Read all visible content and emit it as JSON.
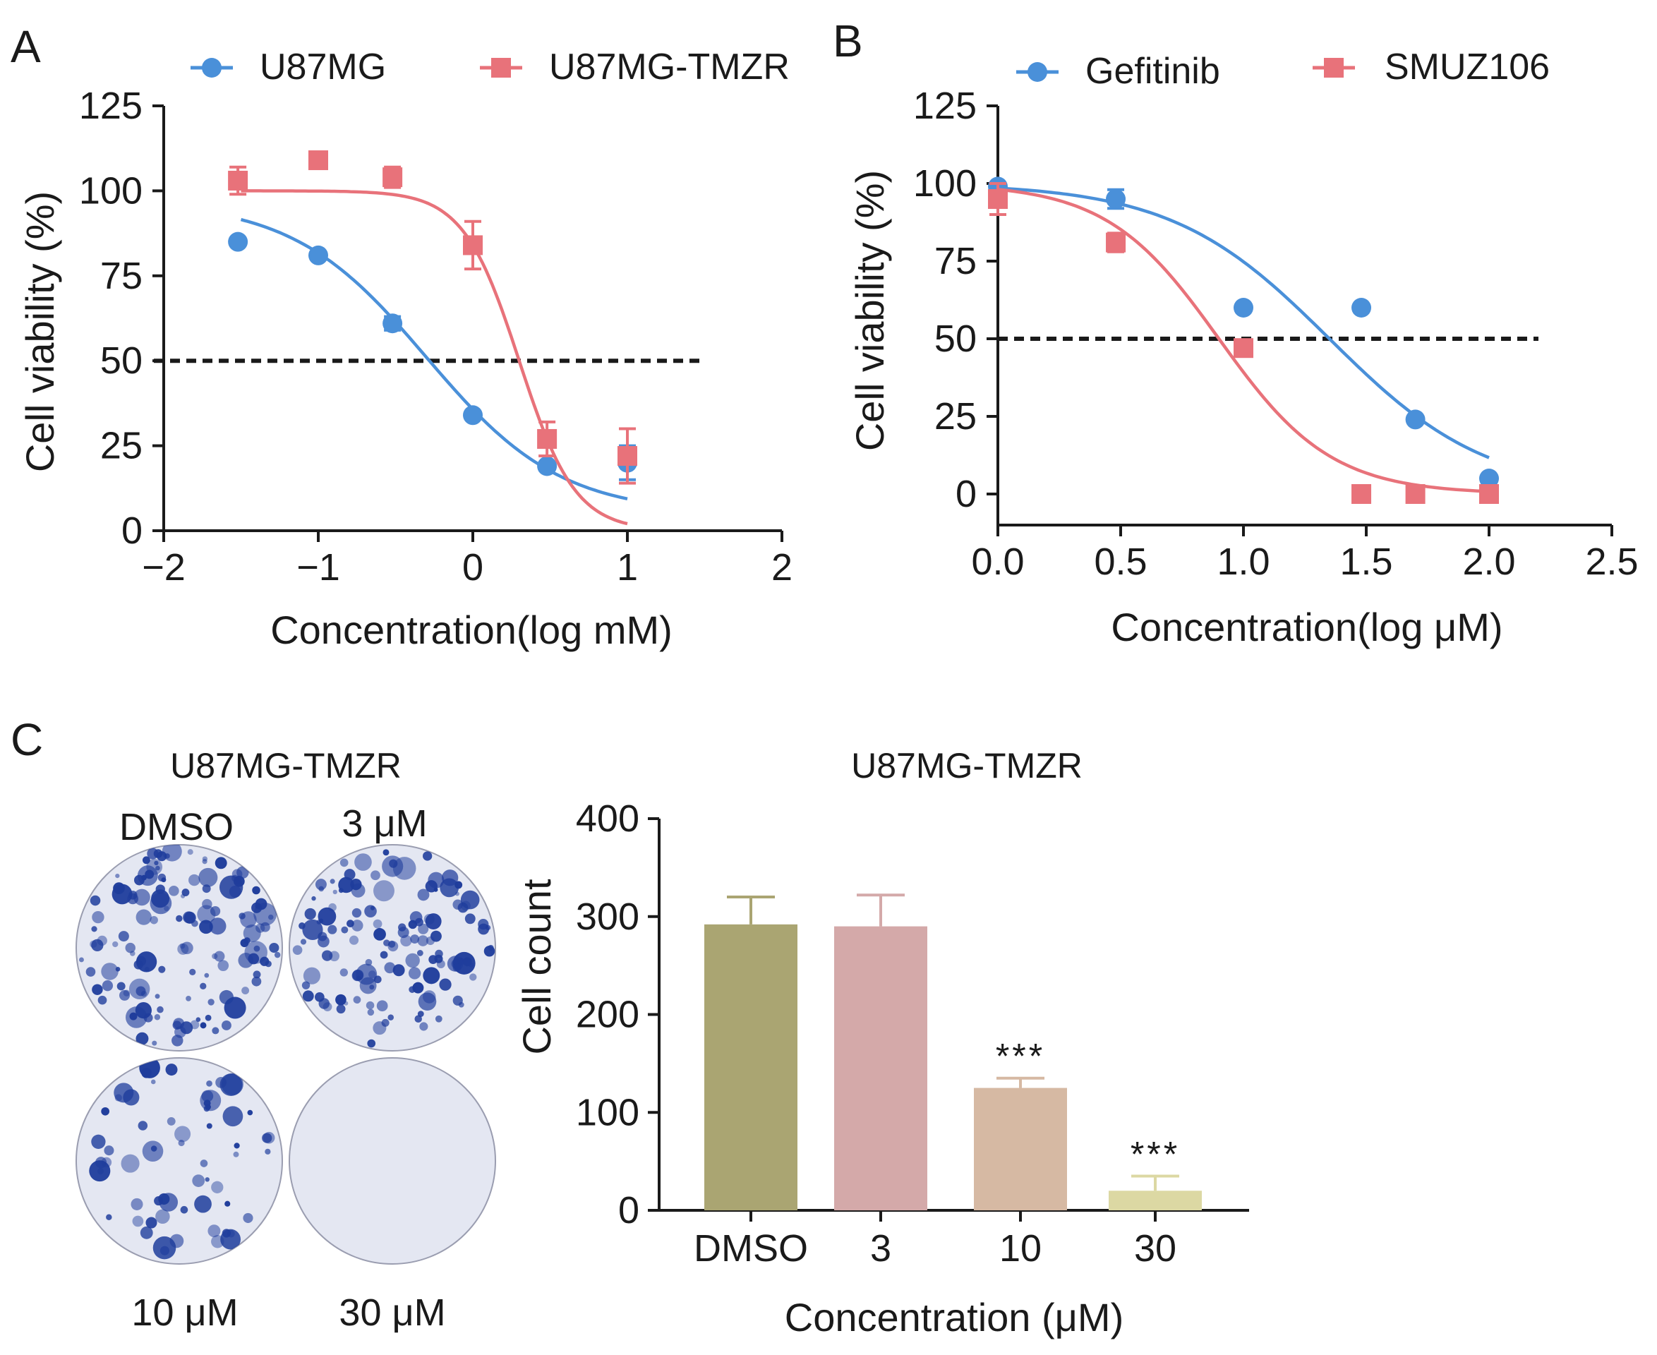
{
  "chart_data": [
    {
      "panel": "A",
      "type": "scatter",
      "title": "",
      "xlabel": "Concentration(log mM)",
      "ylabel": "Cell viability (%)",
      "xlim": [
        -2,
        2
      ],
      "ylim": [
        0,
        125
      ],
      "xticks": [
        "−2",
        "−1",
        "0",
        "1",
        "2"
      ],
      "xtick_values": [
        -2,
        -1,
        0,
        1,
        2
      ],
      "yticks": [
        "0",
        "25",
        "50",
        "75",
        "100",
        "125"
      ],
      "ytick_values": [
        0,
        25,
        50,
        75,
        100,
        125
      ],
      "reference_line_y": 50,
      "fit": "sigmoid (four-parameter logistic)",
      "fit_range": [
        -1.5,
        1.0
      ],
      "legend": "top",
      "series": [
        {
          "name": "U87MG",
          "color": "#4a90d9",
          "marker": "circle",
          "x": [
            -1.52,
            -1.0,
            -0.52,
            0.0,
            0.48,
            1.0
          ],
          "y": [
            85,
            81,
            61,
            34,
            19,
            20
          ],
          "error": [
            0,
            0,
            2,
            0,
            0,
            5
          ],
          "fit_params": {
            "bottom": 5,
            "top": 97,
            "ec50_log": -0.3,
            "hill": 1.0
          }
        },
        {
          "name": "U87MG-TMZR",
          "color": "#e8727a",
          "marker": "square",
          "x": [
            -1.52,
            -1.0,
            -0.52,
            0.0,
            0.48,
            1.0
          ],
          "y": [
            103,
            109,
            104,
            84,
            27,
            22
          ],
          "error": [
            4,
            0,
            3,
            7,
            5,
            8
          ],
          "fit_params": {
            "bottom": 0,
            "top": 100,
            "ec50_log": 0.3,
            "hill": 2.4
          }
        }
      ]
    },
    {
      "panel": "B",
      "type": "scatter",
      "title": "",
      "xlabel": "Concentration(log μM)",
      "ylabel": "Cell viability (%)",
      "xlim": [
        0,
        2.5
      ],
      "ylim": [
        -10,
        125
      ],
      "xticks": [
        "0.0",
        "0.5",
        "1.0",
        "1.5",
        "2.0",
        "2.5"
      ],
      "xtick_values": [
        0,
        0.5,
        1.0,
        1.5,
        2.0,
        2.5
      ],
      "yticks": [
        "0",
        "25",
        "50",
        "75",
        "100",
        "125"
      ],
      "ytick_values": [
        0,
        25,
        50,
        75,
        100,
        125
      ],
      "reference_line_y": 50,
      "fit": "sigmoid (four-parameter logistic)",
      "fit_range": [
        0,
        2.0
      ],
      "legend": "top",
      "series": [
        {
          "name": "Gefitinib",
          "color": "#4a90d9",
          "marker": "circle",
          "x": [
            0.0,
            0.48,
            1.0,
            1.48,
            1.7,
            2.0
          ],
          "y": [
            99,
            95,
            60,
            60,
            24,
            5
          ],
          "error": [
            1,
            3,
            0,
            0,
            0,
            0
          ],
          "fit_params": {
            "bottom": 0,
            "top": 100,
            "ec50_log": 1.35,
            "hill": 1.35
          }
        },
        {
          "name": "SMUZ106",
          "color": "#e8727a",
          "marker": "square",
          "x": [
            0.0,
            0.48,
            1.0,
            1.48,
            1.7,
            2.0
          ],
          "y": [
            95,
            81,
            47,
            0,
            0,
            0
          ],
          "error": [
            5,
            3,
            0,
            0,
            0,
            0
          ],
          "fit_params": {
            "bottom": 0,
            "top": 100,
            "ec50_log": 0.9,
            "hill": 1.9
          }
        }
      ]
    },
    {
      "panel": "C",
      "type": "bar",
      "title": "U87MG-TMZR",
      "xlabel": "Concentration (μM)",
      "ylabel": "Cell count",
      "ylim": [
        0,
        400
      ],
      "yticks": [
        "0",
        "100",
        "200",
        "300",
        "400"
      ],
      "ytick_values": [
        0,
        100,
        200,
        300,
        400
      ],
      "categories": [
        "DMSO",
        "3",
        "10",
        "30"
      ],
      "values": [
        292,
        290,
        125,
        20
      ],
      "error": [
        28,
        32,
        10,
        15
      ],
      "colors": [
        "#aaa572",
        "#d4a9a9",
        "#d6b9a3",
        "#dcd8a3"
      ],
      "significance": [
        "",
        "",
        "***",
        "***"
      ]
    }
  ],
  "panels": {
    "a": {
      "label": "A"
    },
    "b": {
      "label": "B"
    },
    "c": {
      "label": "C"
    }
  },
  "colony": {
    "title": "U87MG-TMZR",
    "wells": [
      {
        "label": "DMSO",
        "density": 1.0
      },
      {
        "label": "3 μM",
        "density": 0.95
      },
      {
        "label": "10 μM",
        "density": 0.45
      },
      {
        "label": "30 μM",
        "density": 0.0
      }
    ],
    "stain_color": "#1f3d9c"
  }
}
